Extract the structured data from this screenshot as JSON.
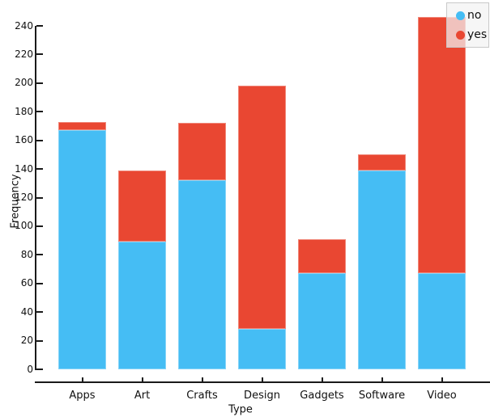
{
  "chart_data": {
    "type": "bar",
    "stacked": true,
    "title": "",
    "xlabel": "Type",
    "ylabel": "Frequency",
    "categories": [
      "Apps",
      "Art",
      "Crafts",
      "Design",
      "Gadgets",
      "Software",
      "Video"
    ],
    "series": [
      {
        "name": "no",
        "color": "#45BDF4",
        "values": [
          167,
          89,
          132,
          28,
          67,
          139,
          67
        ]
      },
      {
        "name": "yes",
        "color": "#E94732",
        "values": [
          6,
          50,
          40,
          170,
          24,
          11,
          179
        ]
      }
    ],
    "stack_totals": [
      173,
      139,
      172,
      198,
      91,
      150,
      246
    ],
    "ylim": [
      0,
      240
    ],
    "yticks": [
      0,
      20,
      40,
      60,
      80,
      100,
      120,
      140,
      160,
      180,
      200,
      220,
      240
    ],
    "grid": false,
    "legend_position": "top-right",
    "legend_items": [
      {
        "label": "no",
        "color": "#45BDF4"
      },
      {
        "label": "yes",
        "color": "#E94732"
      }
    ],
    "axis_color": "#1a1a1a",
    "background_color": "#ffffff"
  }
}
